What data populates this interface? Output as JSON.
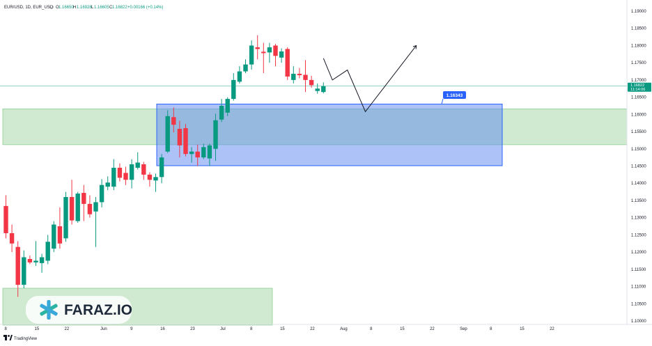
{
  "header": {
    "symbol": "EUR/USD, 1D, EUR_USD",
    "open_label": "O",
    "open": "1.16650",
    "high_label": "H",
    "high": "1.16928",
    "low_label": "L",
    "low": "1.16605",
    "close_label": "C",
    "close": "1.16822",
    "change": "+0.00166 (+0.14%)"
  },
  "price_scale": {
    "labels": [
      "1.19000",
      "1.18500",
      "1.18000",
      "1.17500",
      "1.17000",
      "1.16500",
      "1.16000",
      "1.15500",
      "1.15000",
      "1.14500",
      "1.14000",
      "1.13500",
      "1.13000",
      "1.12500",
      "1.12000",
      "1.11500",
      "1.11000",
      "1.10500",
      "1.10000"
    ],
    "last_price": "1.16822",
    "countdown": "11:14:06"
  },
  "time_scale": {
    "labels": [
      "8",
      "15",
      "22",
      "Jun",
      "9",
      "16",
      "23",
      "Jul",
      "8",
      "15",
      "22",
      "Aug",
      "8",
      "15",
      "22",
      "Sep",
      "8",
      "15",
      "22"
    ]
  },
  "annotation": {
    "label": "1.16343"
  },
  "watermark": {
    "brand": "FARAZ.IO"
  },
  "footer": {
    "brand": "TradingView"
  },
  "colors": {
    "up": "#089981",
    "down": "#f23645",
    "zone_green": "#c8e6c9",
    "zone_blue": "#5b87f0",
    "accent": "#2962ff"
  },
  "chart_data": {
    "type": "candlestick",
    "interval": "1D",
    "ylim": [
      1.0985,
      1.1925
    ],
    "candles": [
      {
        "o": 1.1334,
        "h": 1.1365,
        "l": 1.124,
        "c": 1.1255
      },
      {
        "o": 1.1255,
        "h": 1.128,
        "l": 1.12,
        "c": 1.1225
      },
      {
        "o": 1.1215,
        "h": 1.1232,
        "l": 1.107,
        "c": 1.1105
      },
      {
        "o": 1.1105,
        "h": 1.1205,
        "l": 1.1095,
        "c": 1.1185
      },
      {
        "o": 1.118,
        "h": 1.119,
        "l": 1.1165,
        "c": 1.117
      },
      {
        "o": 1.117,
        "h": 1.1232,
        "l": 1.116,
        "c": 1.1175
      },
      {
        "o": 1.1168,
        "h": 1.1195,
        "l": 1.114,
        "c": 1.1185
      },
      {
        "o": 1.1175,
        "h": 1.125,
        "l": 1.1165,
        "c": 1.123
      },
      {
        "o": 1.121,
        "h": 1.129,
        "l": 1.12,
        "c": 1.128
      },
      {
        "o": 1.1275,
        "h": 1.133,
        "l": 1.121,
        "c": 1.1225
      },
      {
        "o": 1.124,
        "h": 1.1375,
        "l": 1.123,
        "c": 1.136
      },
      {
        "o": 1.136,
        "h": 1.141,
        "l": 1.128,
        "c": 1.1292
      },
      {
        "o": 1.129,
        "h": 1.1375,
        "l": 1.1285,
        "c": 1.137
      },
      {
        "o": 1.1372,
        "h": 1.1395,
        "l": 1.129,
        "c": 1.134
      },
      {
        "o": 1.134,
        "h": 1.1365,
        "l": 1.13,
        "c": 1.131
      },
      {
        "o": 1.1318,
        "h": 1.136,
        "l": 1.1215,
        "c": 1.1345
      },
      {
        "o": 1.1345,
        "h": 1.1412,
        "l": 1.133,
        "c": 1.1395
      },
      {
        "o": 1.139,
        "h": 1.142,
        "l": 1.138,
        "c": 1.1402
      },
      {
        "o": 1.139,
        "h": 1.147,
        "l": 1.138,
        "c": 1.1445
      },
      {
        "o": 1.1445,
        "h": 1.1458,
        "l": 1.1405,
        "c": 1.1416
      },
      {
        "o": 1.143,
        "h": 1.1448,
        "l": 1.1395,
        "c": 1.141
      },
      {
        "o": 1.141,
        "h": 1.147,
        "l": 1.1385,
        "c": 1.1455
      },
      {
        "o": 1.1445,
        "h": 1.149,
        "l": 1.144,
        "c": 1.146
      },
      {
        "o": 1.1455,
        "h": 1.1462,
        "l": 1.141,
        "c": 1.1425
      },
      {
        "o": 1.1425,
        "h": 1.1432,
        "l": 1.139,
        "c": 1.141
      },
      {
        "o": 1.1408,
        "h": 1.1428,
        "l": 1.1375,
        "c": 1.1418
      },
      {
        "o": 1.1418,
        "h": 1.1485,
        "l": 1.14,
        "c": 1.1475
      },
      {
        "o": 1.1492,
        "h": 1.1612,
        "l": 1.1488,
        "c": 1.1595
      },
      {
        "o": 1.1592,
        "h": 1.162,
        "l": 1.1548,
        "c": 1.157
      },
      {
        "o": 1.1558,
        "h": 1.1582,
        "l": 1.1475,
        "c": 1.151
      },
      {
        "o": 1.156,
        "h": 1.1572,
        "l": 1.1478,
        "c": 1.1485
      },
      {
        "o": 1.1485,
        "h": 1.1505,
        "l": 1.146,
        "c": 1.1492
      },
      {
        "o": 1.1492,
        "h": 1.1512,
        "l": 1.145,
        "c": 1.1475
      },
      {
        "o": 1.1475,
        "h": 1.1515,
        "l": 1.147,
        "c": 1.1505
      },
      {
        "o": 1.1472,
        "h": 1.1515,
        "l": 1.145,
        "c": 1.151
      },
      {
        "o": 1.15,
        "h": 1.1602,
        "l": 1.1465,
        "c": 1.1583
      },
      {
        "o": 1.1585,
        "h": 1.1645,
        "l": 1.1578,
        "c": 1.1625
      },
      {
        "o": 1.1605,
        "h": 1.165,
        "l": 1.1595,
        "c": 1.1645
      },
      {
        "o": 1.1645,
        "h": 1.172,
        "l": 1.164,
        "c": 1.17
      },
      {
        "o": 1.1695,
        "h": 1.174,
        "l": 1.169,
        "c": 1.1725
      },
      {
        "o": 1.1725,
        "h": 1.176,
        "l": 1.172,
        "c": 1.1745
      },
      {
        "o": 1.1745,
        "h": 1.1815,
        "l": 1.173,
        "c": 1.18
      },
      {
        "o": 1.1795,
        "h": 1.183,
        "l": 1.176,
        "c": 1.179
      },
      {
        "o": 1.1782,
        "h": 1.1808,
        "l": 1.172,
        "c": 1.1778
      },
      {
        "o": 1.178,
        "h": 1.1808,
        "l": 1.175,
        "c": 1.1795
      },
      {
        "o": 1.18,
        "h": 1.1805,
        "l": 1.174,
        "c": 1.177
      },
      {
        "o": 1.1765,
        "h": 1.1792,
        "l": 1.175,
        "c": 1.1783
      },
      {
        "o": 1.179,
        "h": 1.1795,
        "l": 1.17,
        "c": 1.171
      },
      {
        "o": 1.17,
        "h": 1.174,
        "l": 1.169,
        "c": 1.1718
      },
      {
        "o": 1.1718,
        "h": 1.1735,
        "l": 1.1705,
        "c": 1.1714
      },
      {
        "o": 1.1715,
        "h": 1.1758,
        "l": 1.1665,
        "c": 1.17
      },
      {
        "o": 1.17,
        "h": 1.1712,
        "l": 1.1678,
        "c": 1.1685
      },
      {
        "o": 1.1668,
        "h": 1.169,
        "l": 1.166,
        "c": 1.1675
      },
      {
        "o": 1.1665,
        "h": 1.1693,
        "l": 1.1661,
        "c": 1.1682
      }
    ],
    "zones": [
      {
        "name": "upper-green-zone",
        "y_top": 1.1616,
        "y_bottom": 1.1512,
        "color": "#c8e6c9"
      },
      {
        "name": "lower-green-zone",
        "y_top": 1.1095,
        "y_bottom": 1.0988,
        "color": "#c8e6c9"
      },
      {
        "name": "blue-zone",
        "y_top": 1.163,
        "y_bottom": 1.1451,
        "color": "#5b87f0"
      }
    ],
    "projection": [
      {
        "day": 53,
        "y": 1.1763
      },
      {
        "day": 54.5,
        "y": 1.17
      },
      {
        "day": 57,
        "y": 1.1729
      },
      {
        "day": 60,
        "y": 1.1608
      },
      {
        "day": 68.5,
        "y": 1.18
      }
    ],
    "last_price": 1.16822,
    "annotation_value": 1.16343
  }
}
